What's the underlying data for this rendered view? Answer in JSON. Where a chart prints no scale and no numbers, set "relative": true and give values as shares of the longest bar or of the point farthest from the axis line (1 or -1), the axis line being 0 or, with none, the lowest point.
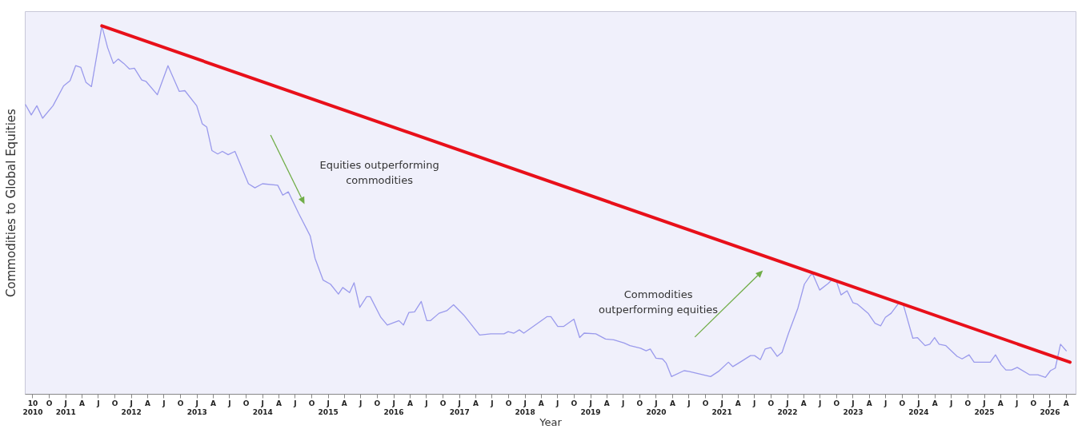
{
  "chart_data": {
    "type": "line",
    "relative": true,
    "xlabel": "Year",
    "ylabel": "Commodities to Global Equities",
    "annotations": [
      "Equities outperforming commodities",
      "Commodities outperforming equities"
    ],
    "xlim": [
      "2010-05-20",
      "2026-05-26"
    ],
    "xticks": [
      {
        "value": "2010-07-01",
        "label": "10\n2010"
      },
      {
        "value": "2010-10-01",
        "label": "O"
      },
      {
        "value": "2011-01-01",
        "label": "J\n2011"
      },
      {
        "value": "2011-04-01",
        "label": "A"
      },
      {
        "value": "2011-07-01",
        "label": "J"
      },
      {
        "value": "2011-10-01",
        "label": "O"
      },
      {
        "value": "2012-01-01",
        "label": "J\n2012"
      },
      {
        "value": "2012-04-01",
        "label": "A"
      },
      {
        "value": "2012-07-01",
        "label": "J"
      },
      {
        "value": "2012-10-01",
        "label": "O"
      },
      {
        "value": "2013-01-01",
        "label": "J\n2013"
      },
      {
        "value": "2013-04-01",
        "label": "A"
      },
      {
        "value": "2013-07-01",
        "label": "J"
      },
      {
        "value": "2013-10-01",
        "label": "O"
      },
      {
        "value": "2014-01-01",
        "label": "J\n2014"
      },
      {
        "value": "2014-04-01",
        "label": "A"
      },
      {
        "value": "2014-07-01",
        "label": "J"
      },
      {
        "value": "2014-10-01",
        "label": "O"
      },
      {
        "value": "2015-01-01",
        "label": "J\n2015"
      },
      {
        "value": "2015-04-01",
        "label": "A"
      },
      {
        "value": "2015-07-01",
        "label": "J"
      },
      {
        "value": "2015-10-01",
        "label": "O"
      },
      {
        "value": "2016-01-01",
        "label": "J\n2016"
      },
      {
        "value": "2016-04-01",
        "label": "A"
      },
      {
        "value": "2016-07-01",
        "label": "J"
      },
      {
        "value": "2016-10-01",
        "label": "O"
      },
      {
        "value": "2017-01-01",
        "label": "J\n2017"
      },
      {
        "value": "2017-04-01",
        "label": "A"
      },
      {
        "value": "2017-07-01",
        "label": "J"
      },
      {
        "value": "2017-10-01",
        "label": "O"
      },
      {
        "value": "2018-01-01",
        "label": "J\n2018"
      },
      {
        "value": "2018-04-01",
        "label": "A"
      },
      {
        "value": "2018-07-01",
        "label": "J"
      },
      {
        "value": "2018-10-01",
        "label": "O"
      },
      {
        "value": "2019-01-01",
        "label": "J\n2019"
      },
      {
        "value": "2019-04-01",
        "label": "A"
      },
      {
        "value": "2019-07-01",
        "label": "J"
      },
      {
        "value": "2019-10-01",
        "label": "O"
      },
      {
        "value": "2020-01-01",
        "label": "J\n2020"
      },
      {
        "value": "2020-04-01",
        "label": "A"
      },
      {
        "value": "2020-07-01",
        "label": "J"
      },
      {
        "value": "2020-10-01",
        "label": "O"
      },
      {
        "value": "2021-01-01",
        "label": "J\n2021"
      },
      {
        "value": "2021-04-01",
        "label": "A"
      },
      {
        "value": "2021-07-01",
        "label": "J"
      },
      {
        "value": "2021-10-01",
        "label": "O"
      },
      {
        "value": "2022-01-01",
        "label": "J\n2022"
      },
      {
        "value": "2022-04-01",
        "label": "A"
      },
      {
        "value": "2022-07-01",
        "label": "J"
      },
      {
        "value": "2022-10-01",
        "label": "O"
      },
      {
        "value": "2023-01-01",
        "label": "J\n2023"
      },
      {
        "value": "2023-04-01",
        "label": "A"
      },
      {
        "value": "2023-07-01",
        "label": "J"
      },
      {
        "value": "2023-10-01",
        "label": "O"
      },
      {
        "value": "2024-01-01",
        "label": "J\n2024"
      },
      {
        "value": "2024-04-01",
        "label": "A"
      },
      {
        "value": "2024-07-01",
        "label": "J"
      },
      {
        "value": "2024-10-01",
        "label": "O"
      },
      {
        "value": "2025-01-01",
        "label": "J\n2025"
      },
      {
        "value": "2025-04-01",
        "label": "A"
      },
      {
        "value": "2025-07-01",
        "label": "J"
      },
      {
        "value": "2025-10-01",
        "label": "O"
      },
      {
        "value": "2026-01-01",
        "label": "J\n2026"
      },
      {
        "value": "2026-04-01",
        "label": "A"
      }
    ],
    "series": [
      {
        "color": "#9a9aec",
        "x": [
          "2010-05-24",
          "2010-06-25",
          "2010-07-26",
          "2010-08-27",
          "2010-10-24",
          "2010-12-22",
          "2011-01-27",
          "2011-02-27",
          "2011-03-28",
          "2011-04-25",
          "2011-05-26",
          "2011-07-23",
          "2011-08-24",
          "2011-09-25",
          "2011-10-22",
          "2011-11-22",
          "2011-12-23",
          "2012-01-20",
          "2012-03-01",
          "2012-03-25",
          "2012-05-27",
          "2012-07-25",
          "2012-09-26",
          "2012-10-27",
          "2013-01-01",
          "2013-02-01",
          "2013-02-26",
          "2013-03-27",
          "2013-04-28",
          "2013-05-24",
          "2013-06-25",
          "2013-08-02",
          "2013-10-16",
          "2013-11-21",
          "2014-01-02",
          "2014-03-28",
          "2014-04-25",
          "2014-05-26",
          "2014-07-23",
          "2014-09-25",
          "2014-10-22",
          "2014-12-06",
          "2015-01-16",
          "2015-03-01",
          "2015-03-25",
          "2015-05-02",
          "2015-05-27",
          "2015-06-28",
          "2015-08-05",
          "2015-08-25",
          "2015-10-23",
          "2015-11-28",
          "2016-02-01",
          "2016-02-26",
          "2016-03-27",
          "2016-04-28",
          "2016-06-04",
          "2016-07-05",
          "2016-07-26",
          "2016-09-11",
          "2016-10-24",
          "2016-12-01",
          "2017-01-27",
          "2017-04-25",
          "2017-06-26",
          "2017-09-08",
          "2017-10-01",
          "2017-11-02",
          "2017-12-02",
          "2017-12-27",
          "2018-05-06",
          "2018-05-27",
          "2018-07-04",
          "2018-08-05",
          "2018-10-02",
          "2018-11-03",
          "2018-11-28",
          "2019-02-01",
          "2019-03-27",
          "2019-05-12",
          "2019-07-09",
          "2019-08-10",
          "2019-10-08",
          "2019-11-08",
          "2019-12-01",
          "2020-01-02",
          "2020-02-07",
          "2020-02-27",
          "2020-03-28",
          "2020-06-06",
          "2020-07-02",
          "2020-11-01",
          "2020-12-15",
          "2021-02-08",
          "2021-03-05",
          "2021-04-14",
          "2021-06-11",
          "2021-07-04",
          "2021-08-05",
          "2021-09-01",
          "2021-10-02",
          "2021-11-07",
          "2021-12-04",
          "2022-01-09",
          "2022-03-02",
          "2022-04-07",
          "2022-05-12",
          "2022-05-24",
          "2022-07-01",
          "2022-08-18",
          "2022-09-11",
          "2022-10-03",
          "2022-10-28",
          "2022-12-01",
          "2023-01-02",
          "2023-01-26",
          "2023-03-28",
          "2023-05-05",
          "2023-06-06",
          "2023-07-02",
          "2023-08-03",
          "2023-09-16",
          "2023-10-09",
          "2023-12-02",
          "2023-12-27",
          "2024-02-08",
          "2024-03-05",
          "2024-04-01",
          "2024-04-26",
          "2024-06-03",
          "2024-08-04",
          "2024-09-01",
          "2024-10-10",
          "2024-11-07",
          "2025-02-05",
          "2025-03-06",
          "2025-04-07",
          "2025-05-03",
          "2025-06-04",
          "2025-07-05",
          "2025-09-11",
          "2025-10-28",
          "2025-12-09",
          "2026-01-06",
          "2026-02-02",
          "2026-03-03",
          "2026-04-04"
        ],
        "values": [
          0.786,
          0.758,
          0.783,
          0.749,
          0.783,
          0.837,
          0.851,
          0.892,
          0.887,
          0.847,
          0.835,
          1.0,
          0.941,
          0.898,
          0.91,
          0.898,
          0.883,
          0.885,
          0.853,
          0.849,
          0.813,
          0.892,
          0.822,
          0.824,
          0.783,
          0.734,
          0.725,
          0.661,
          0.652,
          0.659,
          0.65,
          0.659,
          0.571,
          0.56,
          0.571,
          0.567,
          0.54,
          0.549,
          0.49,
          0.429,
          0.368,
          0.309,
          0.298,
          0.271,
          0.289,
          0.275,
          0.302,
          0.235,
          0.264,
          0.264,
          0.208,
          0.187,
          0.199,
          0.187,
          0.221,
          0.223,
          0.251,
          0.199,
          0.199,
          0.219,
          0.226,
          0.242,
          0.214,
          0.16,
          0.163,
          0.163,
          0.169,
          0.165,
          0.174,
          0.165,
          0.21,
          0.21,
          0.183,
          0.183,
          0.203,
          0.153,
          0.165,
          0.163,
          0.149,
          0.147,
          0.138,
          0.131,
          0.124,
          0.117,
          0.122,
          0.097,
          0.095,
          0.084,
          0.047,
          0.063,
          0.061,
          0.047,
          0.061,
          0.086,
          0.074,
          0.086,
          0.104,
          0.104,
          0.093,
          0.122,
          0.126,
          0.102,
          0.113,
          0.165,
          0.233,
          0.298,
          0.323,
          0.325,
          0.282,
          0.3,
          0.312,
          0.305,
          0.269,
          0.28,
          0.248,
          0.244,
          0.219,
          0.192,
          0.185,
          0.208,
          0.219,
          0.248,
          0.244,
          0.151,
          0.153,
          0.131,
          0.135,
          0.153,
          0.135,
          0.131,
          0.102,
          0.095,
          0.106,
          0.086,
          0.086,
          0.106,
          0.079,
          0.065,
          0.065,
          0.072,
          0.052,
          0.052,
          0.045,
          0.063,
          0.07,
          0.135,
          0.117
        ]
      },
      {
        "type": "line",
        "color": "#e8101a",
        "x": [
          "2011-07-23",
          "2026-04-25"
        ],
        "values": [
          1.0,
          0.086
        ]
      }
    ]
  }
}
